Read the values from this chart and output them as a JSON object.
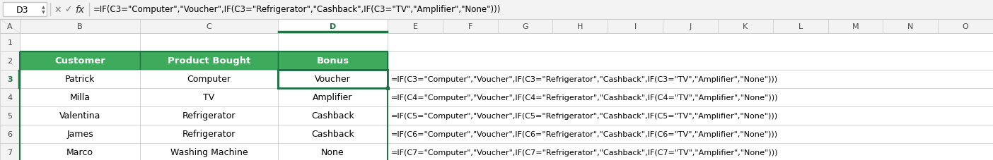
{
  "formula_bar_cell": "D3",
  "formula_bar_text": "=IF(C3=\"Computer\",\"Voucher\",IF(C3=\"Refrigerator\",\"Cashback\",IF(C3=\"TV\",\"Amplifier\",\"None\")))",
  "table_headers": [
    "Customer",
    "Product Bought",
    "Bonus"
  ],
  "header_bg": "#3DAA5C",
  "header_fg": "#FFFFFF",
  "rows": [
    [
      "Patrick",
      "Computer",
      "Voucher"
    ],
    [
      "Milla",
      "TV",
      "Amplifier"
    ],
    [
      "Valentina",
      "Refrigerator",
      "Cashback"
    ],
    [
      "James",
      "Refrigerator",
      "Cashback"
    ],
    [
      "Marco",
      "Washing Machine",
      "None"
    ]
  ],
  "formulas": [
    "=IF(C3=\"Computer\",\"Voucher\",IF(C3=\"Refrigerator\",\"Cashback\",IF(C3=\"TV\",\"Amplifier\",\"None\")))",
    "=IF(C4=\"Computer\",\"Voucher\",IF(C4=\"Refrigerator\",\"Cashback\",IF(C4=\"TV\",\"Amplifier\",\"None\")))",
    "=IF(C5=\"Computer\",\"Voucher\",IF(C5=\"Refrigerator\",\"Cashback\",IF(C5=\"TV\",\"Amplifier\",\"None\")))",
    "=IF(C6=\"Computer\",\"Voucher\",IF(C6=\"Refrigerator\",\"Cashback\",IF(C6=\"TV\",\"Amplifier\",\"None\")))",
    "=IF(C7=\"Computer\",\"Voucher\",IF(C7=\"Refrigerator\",\"Cashback\",IF(C7=\"TV\",\"Amplifier\",\"None\")))"
  ],
  "bg_color": "#FFFFFF",
  "grid_color": "#C8C8C8",
  "cell_bg": "#FFFFFF",
  "toolbar_bg": "#F3F3F3",
  "selected_cell_border": "#217346",
  "col_header_bg": "#F3F3F3",
  "col_header_fg": "#444444",
  "active_col_header_bg": "#FFFFFF",
  "active_col_header_fg": "#217346",
  "active_underline": "#217346",
  "row_num_selected_color": "#217346",
  "formula_text_color": "#000000",
  "table_border_color": "#217346",
  "small_col_labels": [
    "E",
    "F",
    "G",
    "H",
    "I",
    "J",
    "K",
    "L",
    "M",
    "N",
    "O"
  ]
}
